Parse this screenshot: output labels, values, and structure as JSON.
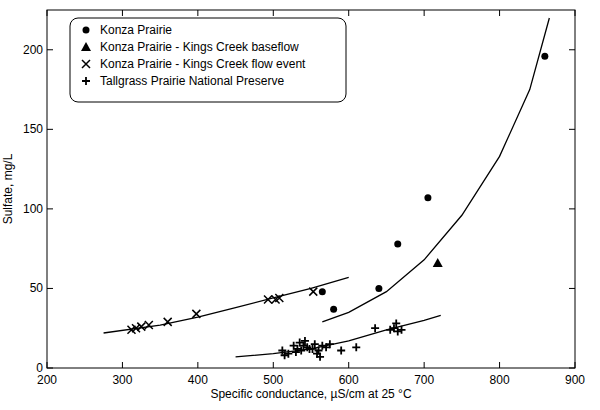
{
  "chart_data": {
    "type": "scatter",
    "x_label": "Specific conductance, µS/cm at 25 °C",
    "y_label": "Sulfate, mg/L",
    "xlim": [
      200,
      900
    ],
    "xticks": [
      200,
      300,
      400,
      500,
      600,
      700,
      800,
      900
    ],
    "ylim": [
      0,
      225
    ],
    "yticks": [
      0,
      50,
      100,
      150,
      200
    ],
    "grid": false,
    "legend": "top-left",
    "series": [
      {
        "name": "Konza Prairie",
        "type": "scatter",
        "marker": "circle",
        "color": "#000000",
        "x": [
          565,
          580,
          640,
          665,
          705,
          860
        ],
        "values": [
          48,
          37,
          50,
          78,
          107,
          196
        ]
      },
      {
        "name": "Konza Prairie - Kings Creek baseflow",
        "type": "scatter",
        "marker": "triangle",
        "color": "#000000",
        "x": [
          718
        ],
        "values": [
          66
        ]
      },
      {
        "name": "Konza Prairie - Kings Creek flow event",
        "type": "scatter",
        "marker": "x",
        "color": "#000000",
        "x": [
          312,
          318,
          325,
          335,
          360,
          398,
          493,
          503,
          508,
          553
        ],
        "values": [
          24,
          25,
          26,
          27,
          29,
          34,
          43,
          43,
          44,
          48
        ]
      },
      {
        "name": "Tallgrass Prairie National Preserve",
        "type": "scatter",
        "marker": "plus",
        "color": "#000000",
        "x": [
          512,
          515,
          520,
          527,
          530,
          532,
          535,
          537,
          540,
          542,
          545,
          548,
          552,
          555,
          558,
          560,
          562,
          565,
          570,
          575,
          590,
          610,
          635,
          655,
          660,
          663,
          665,
          670
        ],
        "values": [
          11,
          8,
          9,
          14,
          10,
          12,
          16,
          11,
          14,
          17,
          13,
          12,
          12,
          15,
          9,
          11,
          7,
          14,
          13,
          15,
          11,
          13,
          25,
          24,
          25,
          28,
          23,
          24
        ]
      },
      {
        "type": "line",
        "line_style": "solid",
        "color": "#000000",
        "x": [
          275,
          350,
          400,
          450,
          500,
          550,
          600
        ],
        "values": [
          22,
          27,
          32,
          38,
          44,
          50,
          57
        ]
      },
      {
        "type": "line",
        "line_style": "solid",
        "color": "#000000",
        "x": [
          565,
          600,
          650,
          700,
          750,
          800,
          840,
          866
        ],
        "values": [
          29,
          35,
          48,
          68,
          96,
          133,
          175,
          220
        ]
      },
      {
        "type": "line",
        "line_style": "solid",
        "color": "#000000",
        "x": [
          450,
          500,
          550,
          600,
          650,
          700,
          722
        ],
        "values": [
          7,
          9,
          12,
          17,
          24,
          30,
          33
        ]
      }
    ]
  }
}
